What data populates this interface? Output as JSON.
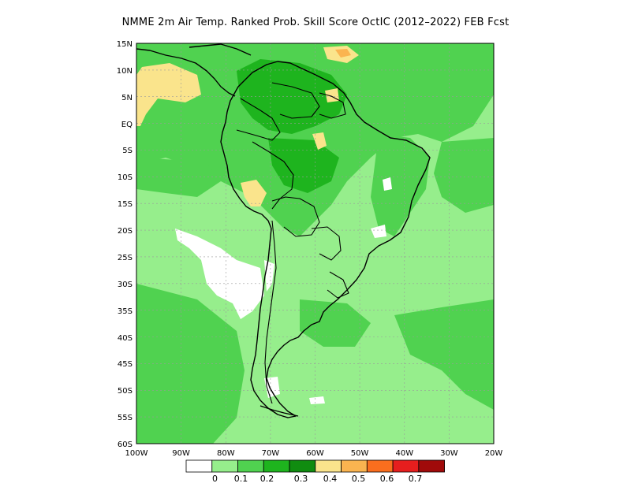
{
  "title": "NMME  2m Air Temp. Ranked Prob. Skill Score OctIC (2012–2022) FEB Fcst",
  "map": {
    "region": "South America",
    "lon_range": [
      -100,
      -20
    ],
    "lat_range": [
      -60,
      15
    ],
    "lat_ticks": [
      "15N",
      "10N",
      "5N",
      "EQ",
      "5S",
      "10S",
      "15S",
      "20S",
      "25S",
      "30S",
      "35S",
      "40S",
      "45S",
      "50S",
      "55S",
      "60S"
    ],
    "lon_ticks": [
      "100W",
      "90W",
      "80W",
      "70W",
      "60W",
      "50W",
      "40W",
      "30W",
      "20W"
    ],
    "grid": true
  },
  "colorbar": {
    "labels": [
      "0",
      "0.1",
      "0.2",
      "0.3",
      "0.4",
      "0.5",
      "0.6",
      "0.7"
    ],
    "colors": [
      "#ffffff",
      "#96ee8c",
      "#50d250",
      "#1eb41e",
      "#108c10",
      "#fae48c",
      "#fab450",
      "#fa6e1e",
      "#e61e1e",
      "#a00a0a"
    ]
  }
}
